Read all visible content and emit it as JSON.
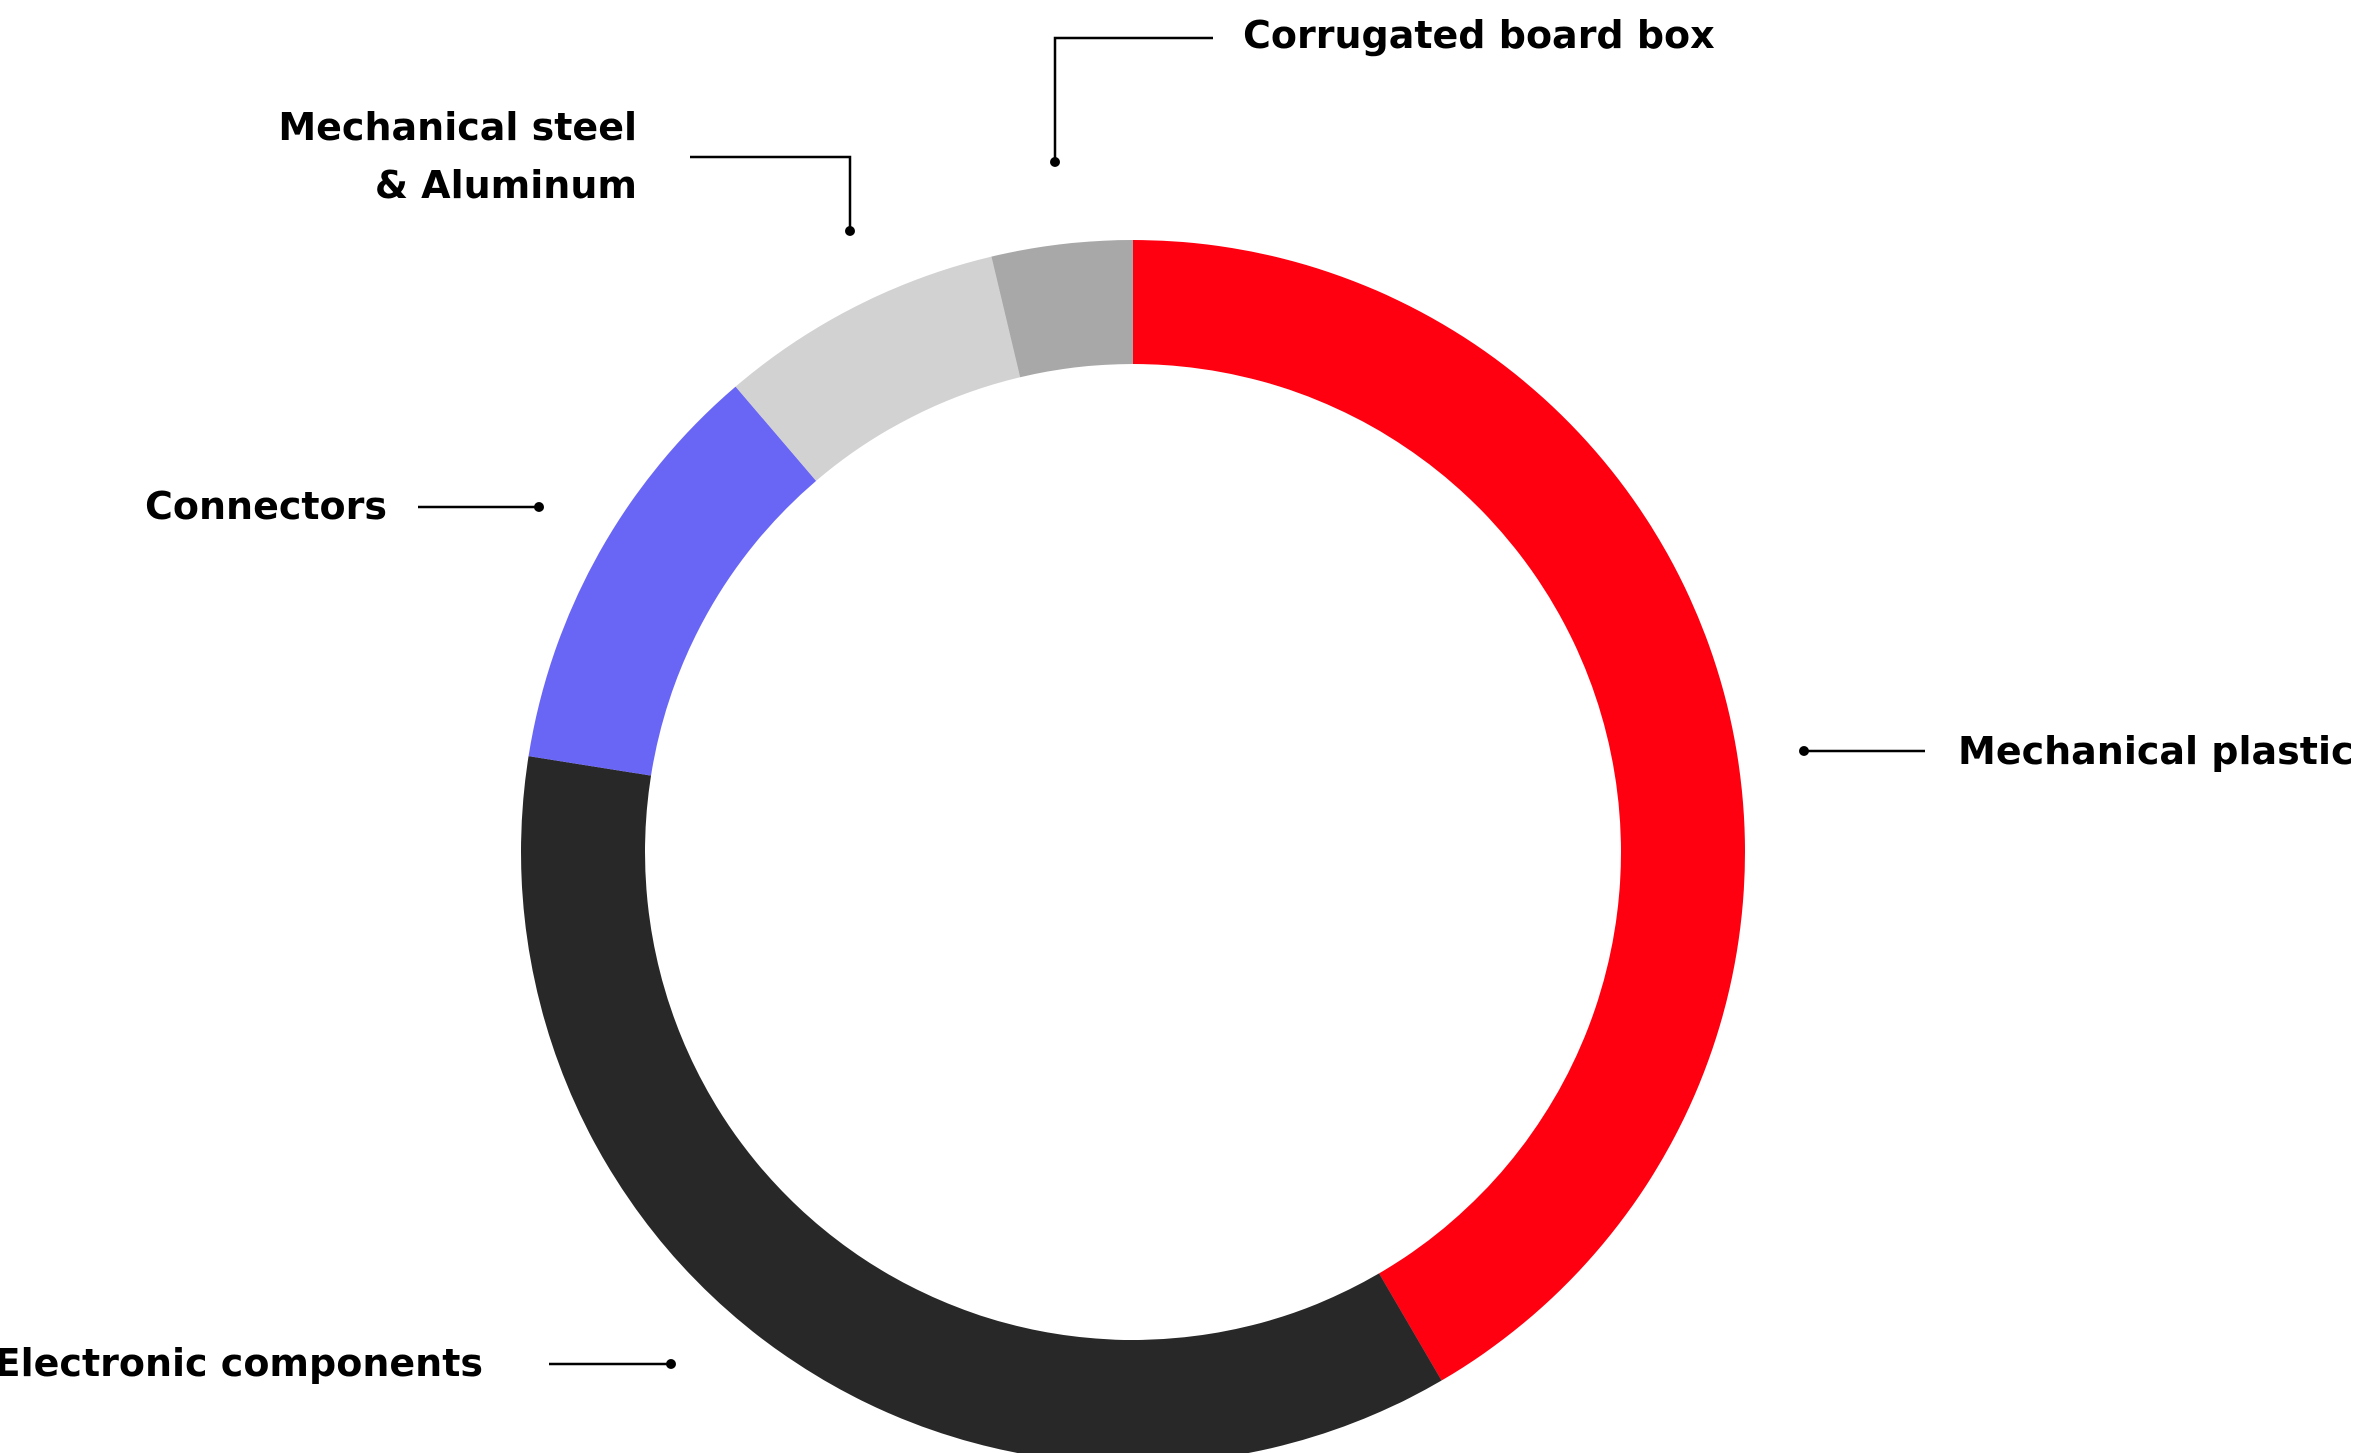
{
  "chart_data": {
    "type": "pie",
    "variant": "donut",
    "start": "top",
    "direction": "clockwise",
    "title": "",
    "legend": "none",
    "slices": [
      {
        "label": "Mechanical plastic",
        "value": 40.3,
        "color": "#ff0010"
      },
      {
        "label": "Electronic components",
        "value": 34.8,
        "color": "#282828"
      },
      {
        "label": "Connectors",
        "value": 10.9,
        "color": "#6a66f5"
      },
      {
        "label": "Mechanical steel & Aluminum",
        "value": 7.3,
        "color": "#d2d2d2"
      },
      {
        "label": "Corrugated board box",
        "value": 3.6,
        "color": "#a8a8a8"
      }
    ]
  },
  "labels": {
    "corrugated": [
      "Corrugated board box"
    ],
    "steel": [
      "Mechanical steel",
      "& Aluminum"
    ],
    "connectors": [
      "Connectors"
    ],
    "plastic": [
      "Mechanical plastic"
    ],
    "electronic": [
      "Electronic components"
    ]
  }
}
